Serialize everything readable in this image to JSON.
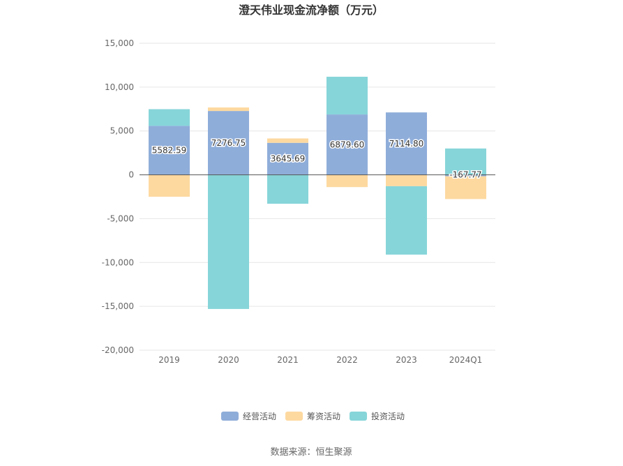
{
  "chart_data": {
    "type": "bar",
    "stacked": true,
    "title": "澄天伟业现金流净额（万元）",
    "categories": [
      "2019",
      "2020",
      "2021",
      "2022",
      "2023",
      "2024Q1"
    ],
    "series": [
      {
        "name": "经营活动",
        "color": "#8fadd9",
        "values": [
          5582.59,
          7276.75,
          3645.69,
          6879.6,
          7114.8,
          -167.77
        ]
      },
      {
        "name": "筹资活动",
        "color": "#fdd9a0",
        "values": [
          -2500,
          400,
          500,
          -1400,
          -1300,
          -2600
        ]
      },
      {
        "name": "投资活动",
        "color": "#86d5d9",
        "values": [
          1900,
          -15300,
          -3300,
          4300,
          -7800,
          3000
        ]
      }
    ],
    "data_labels": [
      "5582.59",
      "7276.75",
      "3645.69",
      "6879.60",
      "7114.80",
      "-167.77"
    ],
    "ylim": [
      -20000,
      15000
    ],
    "yticks": [
      15000,
      10000,
      5000,
      0,
      -5000,
      -10000,
      -15000,
      -20000
    ],
    "ytick_labels": [
      "15,000",
      "10,000",
      "5,000",
      "0",
      "-5,000",
      "-10,000",
      "-15,000",
      "-20,000"
    ],
    "grid": true,
    "legend_position": "bottom",
    "source": "数据来源：恒生聚源"
  }
}
